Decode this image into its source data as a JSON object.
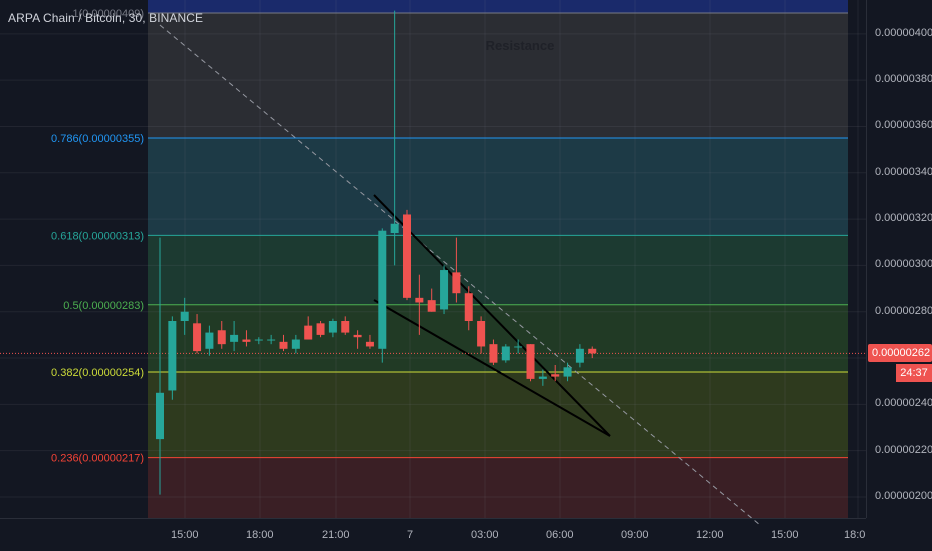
{
  "symbol": {
    "title": "ARPA Chain / Bitcoin, 30, BINANCE"
  },
  "annotation": {
    "resistance": "Resistance"
  },
  "colors": {
    "background": "#131722",
    "grid": "#1e2230",
    "bull": "#26a69a",
    "bear": "#ef5350",
    "last_price_tag": "#ef5350",
    "countdown_bg": "#ef5350"
  },
  "last_price": {
    "label": "0.00000262",
    "value": 2.62e-06,
    "countdown": "24:37"
  },
  "chart_data": {
    "type": "candlestick",
    "title": "",
    "y_axis": {
      "range": [
        1.96e-06,
        4.1e-06
      ],
      "ticks": [
        "0.00000200",
        "0.00000220",
        "0.00000240",
        "0.00000260",
        "0.00000280",
        "0.00000300",
        "0.00000320",
        "0.00000340",
        "0.00000360",
        "0.00000380",
        "0.00000400"
      ]
    },
    "x_axis": {
      "ticks": [
        "15:00",
        "18:00",
        "21:00",
        "7",
        "03:00",
        "06:00",
        "09:00",
        "12:00",
        "15:00",
        "18:0"
      ]
    },
    "grid": true,
    "fibonacci": [
      {
        "label": "1(0.00000409)",
        "value": 4.09e-06,
        "color": "#787b86",
        "fill": "#1a2a6b"
      },
      {
        "label": "0.786(0.00000355)",
        "value": 3.55e-06,
        "color": "#2196f3",
        "fill": "#2d2f36"
      },
      {
        "label": "0.618(0.00000313)",
        "value": 3.13e-06,
        "color": "#26a69a",
        "fill": "#1d3a46"
      },
      {
        "label": "0.5(0.00000283)",
        "value": 2.83e-06,
        "color": "#4caf50",
        "fill": "#1c3a31"
      },
      {
        "label": "0.382(0.00000254)",
        "value": 2.54e-06,
        "color": "#cddc39",
        "fill": "#213a25"
      },
      {
        "label": "0.236(0.00000217)",
        "value": 2.17e-06,
        "color": "#f44336",
        "fill": "#2e3a1e"
      }
    ],
    "candles": [
      {
        "t": 0,
        "o": 2.25e-06,
        "h": 3.12e-06,
        "l": 2.01e-06,
        "c": 2.45e-06
      },
      {
        "t": 1,
        "o": 2.46e-06,
        "h": 2.78e-06,
        "l": 2.42e-06,
        "c": 2.76e-06
      },
      {
        "t": 2,
        "o": 2.76e-06,
        "h": 2.86e-06,
        "l": 2.7e-06,
        "c": 2.8e-06
      },
      {
        "t": 3,
        "o": 2.75e-06,
        "h": 2.79e-06,
        "l": 2.62e-06,
        "c": 2.63e-06
      },
      {
        "t": 4,
        "o": 2.64e-06,
        "h": 2.74e-06,
        "l": 2.61e-06,
        "c": 2.71e-06
      },
      {
        "t": 5,
        "o": 2.72e-06,
        "h": 2.76e-06,
        "l": 2.64e-06,
        "c": 2.66e-06
      },
      {
        "t": 6,
        "o": 2.67e-06,
        "h": 2.76e-06,
        "l": 2.63e-06,
        "c": 2.7e-06
      },
      {
        "t": 7,
        "o": 2.68e-06,
        "h": 2.72e-06,
        "l": 2.65e-06,
        "c": 2.67e-06
      },
      {
        "t": 8,
        "o": 2.68e-06,
        "h": 2.69e-06,
        "l": 2.66e-06,
        "c": 2.68e-06
      },
      {
        "t": 9,
        "o": 2.68e-06,
        "h": 2.7e-06,
        "l": 2.66e-06,
        "c": 2.68e-06
      },
      {
        "t": 10,
        "o": 2.67e-06,
        "h": 2.7e-06,
        "l": 2.63e-06,
        "c": 2.64e-06
      },
      {
        "t": 11,
        "o": 2.64e-06,
        "h": 2.7e-06,
        "l": 2.62e-06,
        "c": 2.68e-06
      },
      {
        "t": 12,
        "o": 2.74e-06,
        "h": 2.78e-06,
        "l": 2.68e-06,
        "c": 2.68e-06
      },
      {
        "t": 13,
        "o": 2.75e-06,
        "h": 2.76e-06,
        "l": 2.69e-06,
        "c": 2.7e-06
      },
      {
        "t": 14,
        "o": 2.71e-06,
        "h": 2.77e-06,
        "l": 2.69e-06,
        "c": 2.76e-06
      },
      {
        "t": 15,
        "o": 2.76e-06,
        "h": 2.78e-06,
        "l": 2.7e-06,
        "c": 2.71e-06
      },
      {
        "t": 16,
        "o": 2.7e-06,
        "h": 2.72e-06,
        "l": 2.64e-06,
        "c": 2.69e-06
      },
      {
        "t": 17,
        "o": 2.67e-06,
        "h": 2.7e-06,
        "l": 2.64e-06,
        "c": 2.65e-06
      },
      {
        "t": 18,
        "o": 2.64e-06,
        "h": 3.16e-06,
        "l": 2.58e-06,
        "c": 3.15e-06
      },
      {
        "t": 19,
        "o": 3.14e-06,
        "h": 4.1e-06,
        "l": 3e-06,
        "c": 3.18e-06
      },
      {
        "t": 20,
        "o": 3.22e-06,
        "h": 3.24e-06,
        "l": 2.85e-06,
        "c": 2.86e-06
      },
      {
        "t": 21,
        "o": 2.86e-06,
        "h": 2.96e-06,
        "l": 2.7e-06,
        "c": 2.84e-06
      },
      {
        "t": 22,
        "o": 2.85e-06,
        "h": 2.9e-06,
        "l": 2.8e-06,
        "c": 2.8e-06
      },
      {
        "t": 23,
        "o": 2.81e-06,
        "h": 3e-06,
        "l": 2.79e-06,
        "c": 2.98e-06
      },
      {
        "t": 24,
        "o": 2.97e-06,
        "h": 3.12e-06,
        "l": 2.84e-06,
        "c": 2.88e-06
      },
      {
        "t": 25,
        "o": 2.88e-06,
        "h": 2.91e-06,
        "l": 2.72e-06,
        "c": 2.76e-06
      },
      {
        "t": 26,
        "o": 2.76e-06,
        "h": 2.78e-06,
        "l": 2.62e-06,
        "c": 2.65e-06
      },
      {
        "t": 27,
        "o": 2.66e-06,
        "h": 2.68e-06,
        "l": 2.57e-06,
        "c": 2.58e-06
      },
      {
        "t": 28,
        "o": 2.59e-06,
        "h": 2.66e-06,
        "l": 2.58e-06,
        "c": 2.65e-06
      },
      {
        "t": 29,
        "o": 2.65e-06,
        "h": 2.68e-06,
        "l": 2.62e-06,
        "c": 2.65e-06
      },
      {
        "t": 30,
        "o": 2.66e-06,
        "h": 2.66e-06,
        "l": 2.5e-06,
        "c": 2.51e-06
      },
      {
        "t": 31,
        "o": 2.51e-06,
        "h": 2.55e-06,
        "l": 2.48e-06,
        "c": 2.52e-06
      },
      {
        "t": 32,
        "o": 2.53e-06,
        "h": 2.57e-06,
        "l": 2.5e-06,
        "c": 2.52e-06
      },
      {
        "t": 33,
        "o": 2.52e-06,
        "h": 2.58e-06,
        "l": 2.5e-06,
        "c": 2.56e-06
      },
      {
        "t": 34,
        "o": 2.58e-06,
        "h": 2.66e-06,
        "l": 2.56e-06,
        "c": 2.64e-06
      },
      {
        "t": 35,
        "o": 2.64e-06,
        "h": 2.65e-06,
        "l": 2.6e-06,
        "c": 2.62e-06
      }
    ]
  }
}
